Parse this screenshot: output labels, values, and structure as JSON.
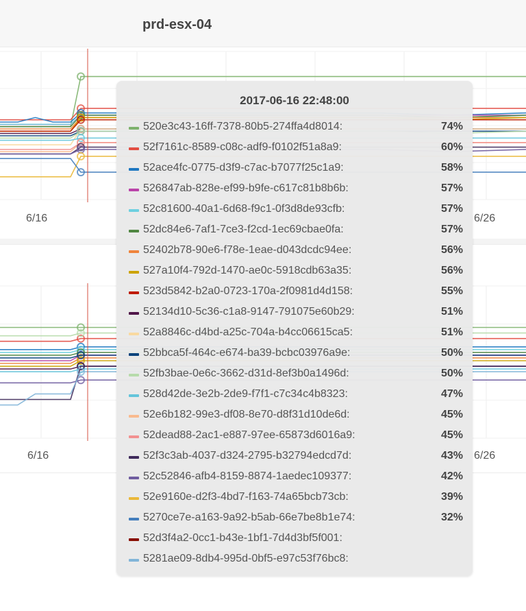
{
  "title": "prd-esx-04",
  "tooltip": {
    "timestamp": "2017-06-16 22:48:00",
    "rows": [
      {
        "name": "520e3c43-16ff-7378-80b5-274ffa4d8014:",
        "value": "74%",
        "color": "#7eb26d"
      },
      {
        "name": "52f7161c-8589-c08c-adf9-f0102f51a8a9:",
        "value": "60%",
        "color": "#e24d42"
      },
      {
        "name": "52ace4fc-0775-d3f9-c7ac-b7077f25c1a9:",
        "value": "58%",
        "color": "#1f78c1"
      },
      {
        "name": "526847ab-828e-ef99-b9fe-c617c81b8b6b:",
        "value": "57%",
        "color": "#ba43a9"
      },
      {
        "name": "52c81600-40a1-6d68-f9c1-0f3d8de93cfb:",
        "value": "57%",
        "color": "#6ed0e0"
      },
      {
        "name": "52dc84e6-7af1-7ce3-f2cd-1ec69cbae0fa:",
        "value": "57%",
        "color": "#508642"
      },
      {
        "name": "52402b78-90e6-f78e-1eae-d043dcdc94ee:",
        "value": "56%",
        "color": "#ef843c"
      },
      {
        "name": "527a10f4-792d-1470-ae0c-5918cdb63a35:",
        "value": "56%",
        "color": "#cca300"
      },
      {
        "name": "523d5842-b2a0-0723-170a-2f0981d4d158:",
        "value": "55%",
        "color": "#bf1b00"
      },
      {
        "name": "52134d10-5c36-c1a8-9147-791075e60b29:",
        "value": "51%",
        "color": "#511749"
      },
      {
        "name": "52a8846c-d4bd-a25c-704a-b4cc06615ca5:",
        "value": "51%",
        "color": "#f9d9a0"
      },
      {
        "name": "52bbca5f-464c-e674-ba39-bcbc03976a9e:",
        "value": "50%",
        "color": "#0a437c"
      },
      {
        "name": "52fb3bae-0e6c-3662-d31d-8ef3b0a1496d:",
        "value": "50%",
        "color": "#b7dbab"
      },
      {
        "name": "528d42de-3e2b-2de9-f7f1-c7c34c4b8323:",
        "value": "47%",
        "color": "#65c5db"
      },
      {
        "name": "52e6b182-99e3-df08-8e70-d8f31d10de6d:",
        "value": "45%",
        "color": "#f9ba8f"
      },
      {
        "name": "52dead88-2ac1-e887-97ee-65873d6016a9:",
        "value": "45%",
        "color": "#f29191"
      },
      {
        "name": "52f3c3ab-4037-d324-2795-b32794edcd7d:",
        "value": "43%",
        "color": "#3f2b5b"
      },
      {
        "name": "52c52846-afb4-8159-8874-1aedec109377:",
        "value": "42%",
        "color": "#705da0"
      },
      {
        "name": "52e9160e-d2f3-4bd7-f163-74a65bcb73cb:",
        "value": "39%",
        "color": "#eab839"
      },
      {
        "name": "5270ce7e-a163-9a92-b5ab-66e7be8b1e74:",
        "value": "32%",
        "color": "#447ebc"
      },
      {
        "name": "52d3f4a2-0cc1-b43e-1bf1-7d4d3bf5f001:",
        "value": "",
        "color": "#890f02"
      },
      {
        "name": "5281ae09-8db4-995d-0bf5-e97c53f76bc8:",
        "value": "",
        "color": "#82b5d8"
      }
    ]
  },
  "chart_data": [
    {
      "type": "line",
      "title": "",
      "x_ticks": [
        "6/16",
        "6/26"
      ],
      "grid": true,
      "series": [
        {
          "color": "#7eb26d",
          "values": [
            52,
            52,
            52,
            52,
            52,
            74,
            74,
            74,
            74,
            74,
            74,
            74
          ]
        },
        {
          "color": "#e24d42",
          "values": [
            55,
            55,
            55,
            55,
            55,
            60,
            60,
            60,
            60,
            60,
            60,
            60
          ]
        },
        {
          "color": "#1f78c1",
          "values": [
            54,
            54,
            56,
            54,
            54,
            58,
            58,
            58,
            58,
            58,
            57,
            58
          ]
        },
        {
          "color": "#ba43a9",
          "values": [
            53,
            53,
            53,
            53,
            53,
            57,
            57,
            57,
            57,
            57,
            57,
            57
          ]
        },
        {
          "color": "#6ed0e0",
          "values": [
            53,
            53,
            53,
            53,
            53,
            57,
            57,
            57,
            57,
            57,
            56,
            57
          ]
        },
        {
          "color": "#508642",
          "values": [
            52,
            52,
            52,
            52,
            52,
            57,
            57,
            57,
            57,
            57,
            56,
            57
          ]
        },
        {
          "color": "#ef843c",
          "values": [
            51,
            51,
            51,
            51,
            51,
            56,
            56,
            56,
            56,
            56,
            56,
            56
          ]
        },
        {
          "color": "#cca300",
          "values": [
            50,
            50,
            50,
            50,
            50,
            56,
            56,
            56,
            56,
            56,
            55,
            56
          ]
        },
        {
          "color": "#bf1b00",
          "values": [
            50,
            50,
            50,
            50,
            50,
            55,
            55,
            55,
            55,
            55,
            55,
            55
          ]
        },
        {
          "color": "#511749",
          "values": [
            49,
            49,
            49,
            49,
            49,
            51,
            51,
            51,
            51,
            51,
            51,
            51
          ]
        },
        {
          "color": "#f9d9a0",
          "values": [
            44,
            44,
            44,
            44,
            44,
            51,
            51,
            51,
            51,
            51,
            51,
            51
          ]
        },
        {
          "color": "#0a437c",
          "values": [
            48,
            48,
            48,
            48,
            48,
            50,
            50,
            50,
            50,
            50,
            50,
            50
          ]
        },
        {
          "color": "#b7dbab",
          "values": [
            47,
            47,
            47,
            47,
            47,
            50,
            50,
            50,
            50,
            50,
            49,
            50
          ]
        },
        {
          "color": "#65c5db",
          "values": [
            46,
            46,
            46,
            46,
            46,
            47,
            47,
            47,
            47,
            47,
            47,
            47
          ]
        },
        {
          "color": "#f9ba8f",
          "values": [
            41,
            41,
            41,
            41,
            41,
            45,
            45,
            45,
            45,
            45,
            45,
            45
          ]
        },
        {
          "color": "#f29191",
          "values": [
            42,
            42,
            42,
            42,
            42,
            45,
            45,
            45,
            45,
            45,
            45,
            45
          ]
        },
        {
          "color": "#3f2b5b",
          "values": [
            40,
            40,
            40,
            40,
            40,
            43,
            43,
            43,
            43,
            43,
            43,
            43
          ]
        },
        {
          "color": "#705da0",
          "values": [
            40,
            40,
            40,
            40,
            40,
            42,
            42,
            42,
            42,
            42,
            41,
            42
          ]
        },
        {
          "color": "#eab839",
          "values": [
            30,
            30,
            30,
            30,
            30,
            39,
            39,
            39,
            39,
            39,
            39,
            39
          ]
        },
        {
          "color": "#447ebc",
          "values": [
            38,
            38,
            38,
            38,
            38,
            32,
            32,
            32,
            32,
            32,
            32,
            32
          ]
        }
      ],
      "ylim": [
        20,
        85
      ]
    },
    {
      "type": "line",
      "title": "",
      "x_ticks": [
        "6/16",
        "6/26"
      ],
      "grid": true,
      "series": [
        {
          "color": "#7eb26d",
          "values": [
            60,
            60,
            60,
            60,
            60,
            60,
            60,
            60,
            60,
            60,
            60,
            60
          ]
        },
        {
          "color": "#e24d42",
          "values": [
            55,
            55,
            55,
            55,
            55,
            56,
            56,
            56,
            56,
            56,
            56,
            56
          ]
        },
        {
          "color": "#1f78c1",
          "values": [
            52,
            52,
            52,
            52,
            52,
            53,
            53,
            53,
            53,
            53,
            53,
            53
          ]
        },
        {
          "color": "#ba43a9",
          "values": [
            48,
            48,
            48,
            48,
            48,
            50,
            50,
            50,
            50,
            50,
            50,
            50
          ]
        },
        {
          "color": "#6ed0e0",
          "values": [
            51,
            51,
            51,
            51,
            51,
            52,
            52,
            52,
            52,
            52,
            52,
            52
          ]
        },
        {
          "color": "#508642",
          "values": [
            50,
            50,
            50,
            50,
            50,
            51,
            51,
            51,
            51,
            51,
            51,
            51
          ]
        },
        {
          "color": "#ef843c",
          "values": [
            47,
            47,
            47,
            47,
            47,
            49,
            49,
            49,
            49,
            49,
            49,
            49
          ]
        },
        {
          "color": "#cca300",
          "values": [
            46,
            46,
            46,
            46,
            46,
            48,
            48,
            48,
            48,
            48,
            48,
            48
          ]
        },
        {
          "color": "#511749",
          "values": [
            45,
            45,
            45,
            45,
            45,
            46,
            46,
            46,
            46,
            46,
            46,
            46
          ]
        },
        {
          "color": "#0a437c",
          "values": [
            49,
            49,
            49,
            49,
            49,
            50,
            50,
            50,
            50,
            50,
            50,
            50
          ]
        },
        {
          "color": "#b7dbab",
          "values": [
            57,
            57,
            57,
            57,
            57,
            58,
            58,
            58,
            58,
            58,
            58,
            58
          ]
        },
        {
          "color": "#65c5db",
          "values": [
            44,
            44,
            44,
            44,
            44,
            45,
            45,
            45,
            45,
            45,
            45,
            45
          ]
        },
        {
          "color": "#3f2b5b",
          "values": [
            34,
            34,
            34,
            34,
            34,
            46,
            46,
            46,
            46,
            46,
            46,
            46
          ]
        },
        {
          "color": "#705da0",
          "values": [
            40,
            40,
            40,
            40,
            40,
            41,
            41,
            41,
            41,
            41,
            41,
            41
          ]
        },
        {
          "color": "#82b5d8",
          "values": [
            32,
            32,
            36,
            36,
            36,
            44,
            44,
            44,
            44,
            44,
            44,
            44
          ]
        }
      ],
      "ylim": [
        20,
        75
      ]
    }
  ]
}
